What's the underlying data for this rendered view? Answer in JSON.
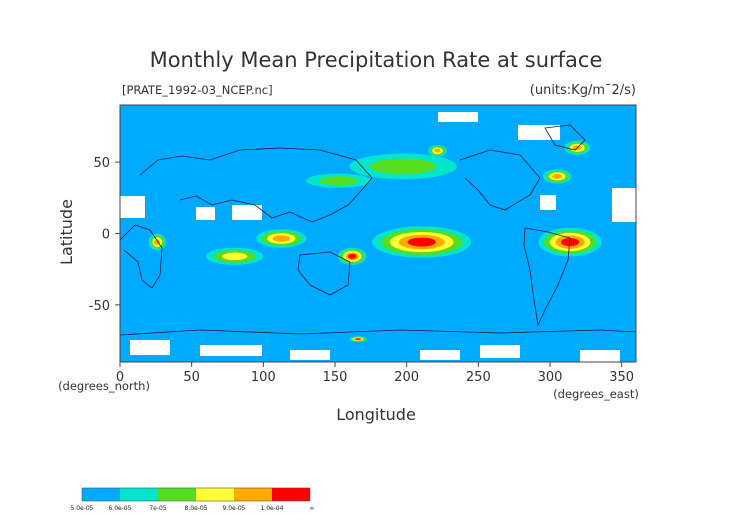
{
  "chart_data": {
    "type": "heatmap",
    "title": "Monthly Mean Precipitation Rate at surface",
    "subtitle": "[PRATE_1992-03_NCEP.nc]",
    "units": "(units:Kg/m¯2/s)",
    "xlabel": "Longitude",
    "ylabel": "Latitude",
    "x_unit": "(degrees_east)",
    "y_unit": "(degrees_north)",
    "xlim": [
      0,
      360
    ],
    "ylim": [
      -90,
      90
    ],
    "x_ticks": [
      0,
      50,
      100,
      150,
      200,
      250,
      300,
      350
    ],
    "y_ticks": [
      -50,
      0,
      50
    ],
    "colorbar": {
      "levels": [
        "5.0e-05",
        "6.0e-05",
        "7e-05",
        "8.0e-05",
        "9.0e-05",
        "1.0e-04",
        "∞"
      ],
      "colors": [
        "#00aaff",
        "#00e5cc",
        "#55dd22",
        "#ffff33",
        "#ffaa00",
        "#ff0000"
      ]
    },
    "missing_color": "#ffffff",
    "coastline_color": "#1a1a3a",
    "precip_regions": [
      {
        "lon": [
          176,
          245
        ],
        "lat": [
          -17,
          5
        ],
        "level": 5
      },
      {
        "lon": [
          292,
          336
        ],
        "lat": [
          -16,
          4
        ],
        "level": 5
      },
      {
        "lon": [
          95,
          130
        ],
        "lat": [
          -10,
          3
        ],
        "level": 4
      },
      {
        "lon": [
          152,
          172
        ],
        "lat": [
          -22,
          -10
        ],
        "level": 5
      },
      {
        "lon": [
          60,
          100
        ],
        "lat": [
          -22,
          -10
        ],
        "level": 3
      },
      {
        "lon": [
          20,
          32
        ],
        "lat": [
          -12,
          0
        ],
        "level": 4
      },
      {
        "lon": [
          130,
          175
        ],
        "lat": [
          32,
          42
        ],
        "level": 2
      },
      {
        "lon": [
          160,
          235
        ],
        "lat": [
          38,
          56
        ],
        "level": 2
      },
      {
        "lon": [
          310,
          328
        ],
        "lat": [
          55,
          65
        ],
        "level": 4
      },
      {
        "lon": [
          295,
          315
        ],
        "lat": [
          35,
          45
        ],
        "level": 4
      },
      {
        "lon": [
          215,
          228
        ],
        "lat": [
          54,
          62
        ],
        "level": 4
      },
      {
        "lon": [
          160,
          172
        ],
        "lat": [
          -76,
          -72
        ],
        "level": 5
      }
    ]
  }
}
